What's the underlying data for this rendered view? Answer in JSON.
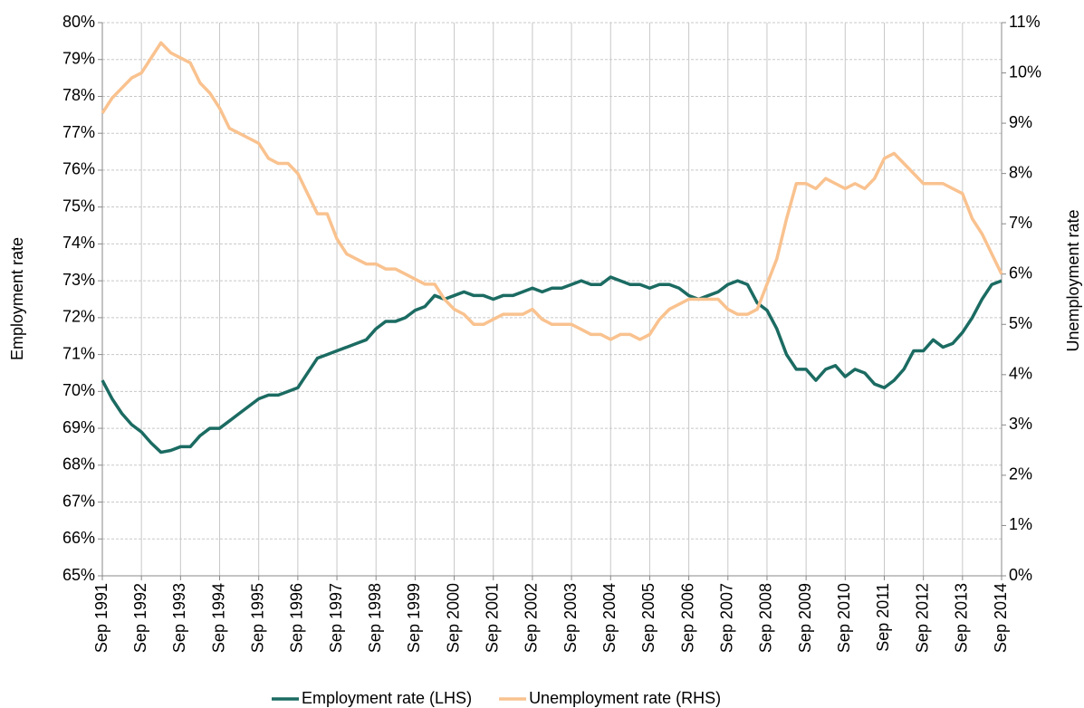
{
  "chart_data": {
    "type": "line",
    "y_label": "Employment rate",
    "y2_label": "Unemployment rate",
    "categories": [
      "Sep 1991",
      null,
      null,
      null,
      "Sep 1992",
      null,
      null,
      null,
      "Sep 1993",
      null,
      null,
      null,
      "Sep 1994",
      null,
      null,
      null,
      "Sep 1995",
      null,
      null,
      null,
      "Sep 1996",
      null,
      null,
      null,
      "Sep 1997",
      null,
      null,
      null,
      "Sep 1998",
      null,
      null,
      null,
      "Sep 1999",
      null,
      null,
      null,
      "Sep 2000",
      null,
      null,
      null,
      "Sep 2001",
      null,
      null,
      null,
      "Sep 2002",
      null,
      null,
      null,
      "Sep 2003",
      null,
      null,
      null,
      "Sep 2004",
      null,
      null,
      null,
      "Sep 2005",
      null,
      null,
      null,
      "Sep 2006",
      null,
      null,
      null,
      "Sep 2007",
      null,
      null,
      null,
      "Sep 2008",
      null,
      null,
      null,
      "Sep 2009",
      null,
      null,
      null,
      "Sep 2010",
      null,
      null,
      null,
      "Sep 2011",
      null,
      null,
      null,
      "Sep 2012",
      null,
      null,
      null,
      "Sep 2013",
      null,
      null,
      null,
      "Sep 2014"
    ],
    "series": [
      {
        "name": "Employment rate (LHS)",
        "color": "#1b6b62",
        "axis": "y",
        "values": [
          70.3,
          69.8,
          69.4,
          69.1,
          68.9,
          68.6,
          68.35,
          68.4,
          68.5,
          68.5,
          68.8,
          69.0,
          69.0,
          69.2,
          69.4,
          69.6,
          69.8,
          69.9,
          69.9,
          70.0,
          70.1,
          70.5,
          70.9,
          71.0,
          71.1,
          71.2,
          71.3,
          71.4,
          71.7,
          71.9,
          71.9,
          72.0,
          72.2,
          72.3,
          72.6,
          72.5,
          72.6,
          72.7,
          72.6,
          72.6,
          72.5,
          72.6,
          72.6,
          72.7,
          72.8,
          72.7,
          72.8,
          72.8,
          72.9,
          73.0,
          72.9,
          72.9,
          73.1,
          73.0,
          72.9,
          72.9,
          72.8,
          72.9,
          72.9,
          72.8,
          72.6,
          72.5,
          72.6,
          72.7,
          72.9,
          73.0,
          72.9,
          72.4,
          72.2,
          71.7,
          71.0,
          70.6,
          70.6,
          70.3,
          70.6,
          70.7,
          70.4,
          70.6,
          70.5,
          70.2,
          70.1,
          70.3,
          70.6,
          71.1,
          71.1,
          71.4,
          71.2,
          71.3,
          71.6,
          72.0,
          72.5,
          72.9,
          73.0
        ]
      },
      {
        "name": "Unemployment rate (RHS)",
        "color": "#f9c28f",
        "axis": "y2",
        "values": [
          9.2,
          9.5,
          9.7,
          9.9,
          10.0,
          10.3,
          10.6,
          10.4,
          10.3,
          10.2,
          9.8,
          9.6,
          9.3,
          8.9,
          8.8,
          8.7,
          8.6,
          8.3,
          8.2,
          8.2,
          8.0,
          7.6,
          7.2,
          7.2,
          6.7,
          6.4,
          6.3,
          6.2,
          6.2,
          6.1,
          6.1,
          6.0,
          5.9,
          5.8,
          5.8,
          5.5,
          5.3,
          5.2,
          5.0,
          5.0,
          5.1,
          5.2,
          5.2,
          5.2,
          5.3,
          5.1,
          5.0,
          5.0,
          5.0,
          4.9,
          4.8,
          4.8,
          4.7,
          4.8,
          4.8,
          4.7,
          4.8,
          5.1,
          5.3,
          5.4,
          5.5,
          5.5,
          5.5,
          5.5,
          5.3,
          5.2,
          5.2,
          5.3,
          5.8,
          6.3,
          7.1,
          7.8,
          7.8,
          7.7,
          7.9,
          7.8,
          7.7,
          7.8,
          7.7,
          7.9,
          8.3,
          8.4,
          8.2,
          8.0,
          7.8,
          7.8,
          7.8,
          7.7,
          7.6,
          7.1,
          6.8,
          6.4,
          6.0
        ]
      }
    ],
    "ylim": [
      65,
      80
    ],
    "yticks": [
      {
        "value": 65,
        "label": "65%"
      },
      {
        "value": 66,
        "label": "66%"
      },
      {
        "value": 67,
        "label": "67%"
      },
      {
        "value": 68,
        "label": "68%"
      },
      {
        "value": 69,
        "label": "69%"
      },
      {
        "value": 70,
        "label": "70%"
      },
      {
        "value": 71,
        "label": "71%"
      },
      {
        "value": 72,
        "label": "72%"
      },
      {
        "value": 73,
        "label": "73%"
      },
      {
        "value": 74,
        "label": "74%"
      },
      {
        "value": 75,
        "label": "75%"
      },
      {
        "value": 76,
        "label": "76%"
      },
      {
        "value": 77,
        "label": "77%"
      },
      {
        "value": 78,
        "label": "78%"
      },
      {
        "value": 79,
        "label": "79%"
      },
      {
        "value": 80,
        "label": "80%"
      }
    ],
    "y2lim": [
      0,
      11
    ],
    "y2ticks": [
      {
        "value": 0,
        "label": "0%"
      },
      {
        "value": 1,
        "label": "1%"
      },
      {
        "value": 2,
        "label": "2%"
      },
      {
        "value": 3,
        "label": "3%"
      },
      {
        "value": 4,
        "label": "4%"
      },
      {
        "value": 5,
        "label": "5%"
      },
      {
        "value": 6,
        "label": "6%"
      },
      {
        "value": 7,
        "label": "7%"
      },
      {
        "value": 8,
        "label": "8%"
      },
      {
        "value": 9,
        "label": "9%"
      },
      {
        "value": 10,
        "label": "10%"
      },
      {
        "value": 11,
        "label": "11%"
      }
    ],
    "grid": true,
    "legend": "bottom"
  }
}
